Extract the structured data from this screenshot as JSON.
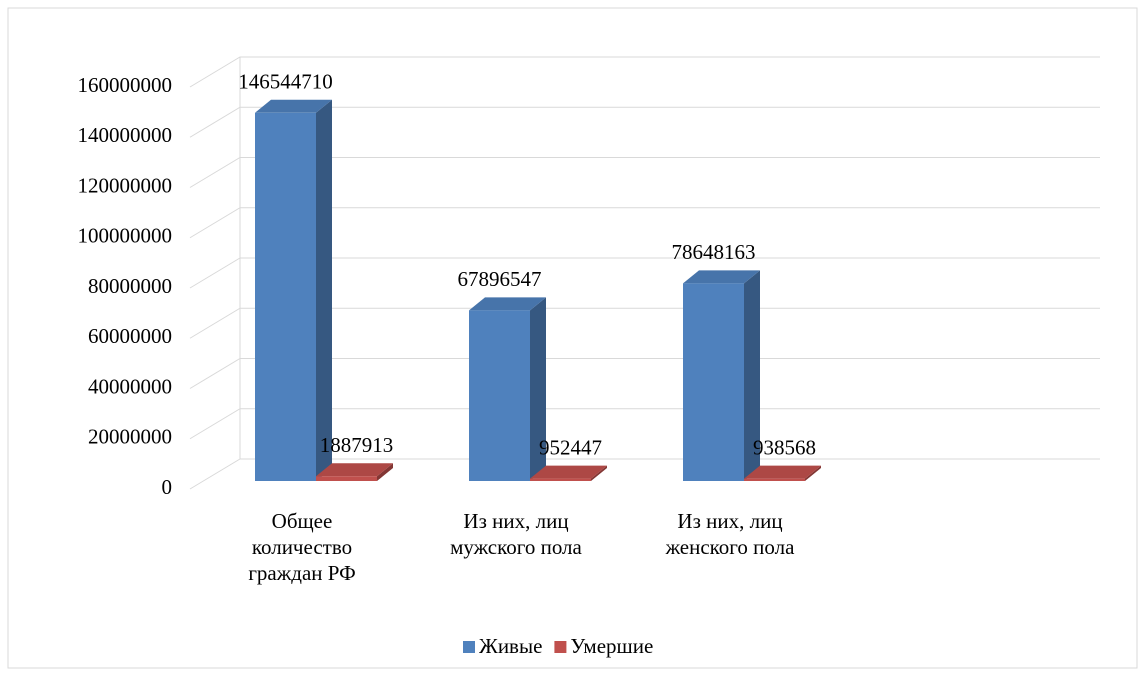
{
  "chart_data": {
    "type": "bar3d",
    "categories": [
      "Общее количество граждан РФ",
      "Из них, лиц мужского пола",
      "Из них, лиц женского пола"
    ],
    "series": [
      {
        "name": "Живые",
        "color": "#4f81bd",
        "values": [
          146544710,
          67896547,
          78648163
        ]
      },
      {
        "name": "Умершие",
        "color": "#c0504d",
        "values": [
          1887913,
          952447,
          938568
        ]
      }
    ],
    "ylim": [
      0,
      160000000
    ],
    "yticks": [
      0,
      20000000,
      40000000,
      60000000,
      80000000,
      100000000,
      120000000,
      140000000,
      160000000
    ],
    "grid": true,
    "legend": "bottom"
  }
}
